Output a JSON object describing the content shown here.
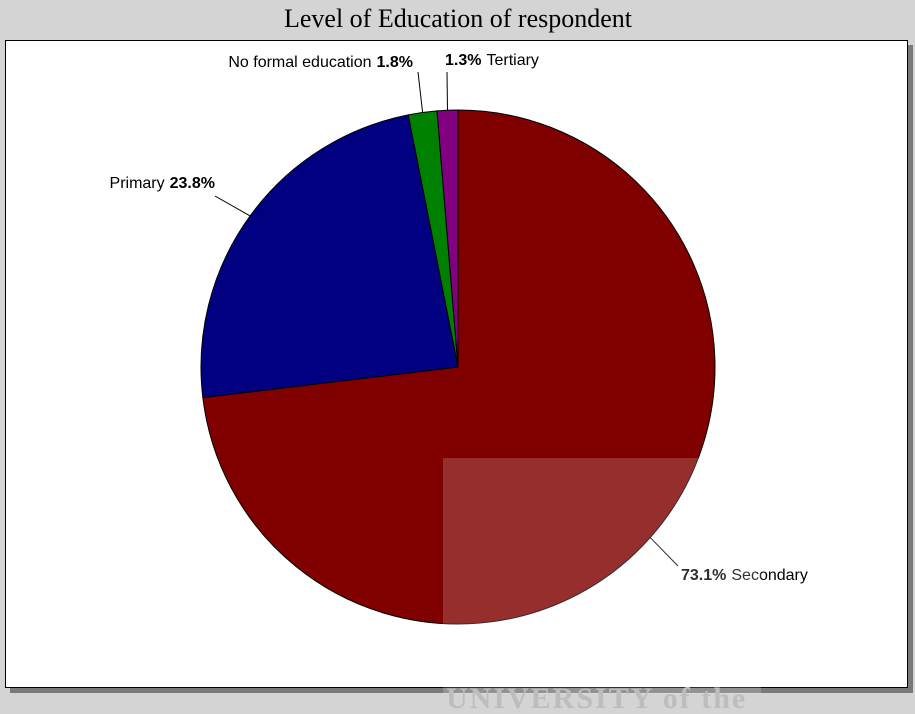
{
  "chart_data": {
    "type": "pie",
    "title": "Level of Education of respondent",
    "categories": [
      "Secondary",
      "Primary",
      "No formal education",
      "Tertiary"
    ],
    "values": [
      73.1,
      23.8,
      1.8,
      1.3
    ],
    "value_labels": [
      "73.1%",
      "23.8%",
      "1.8%",
      "1.3%"
    ],
    "colors": [
      "#800000",
      "#000080",
      "#008000",
      "#800080"
    ]
  },
  "watermark": "UNIVERSITY of the"
}
